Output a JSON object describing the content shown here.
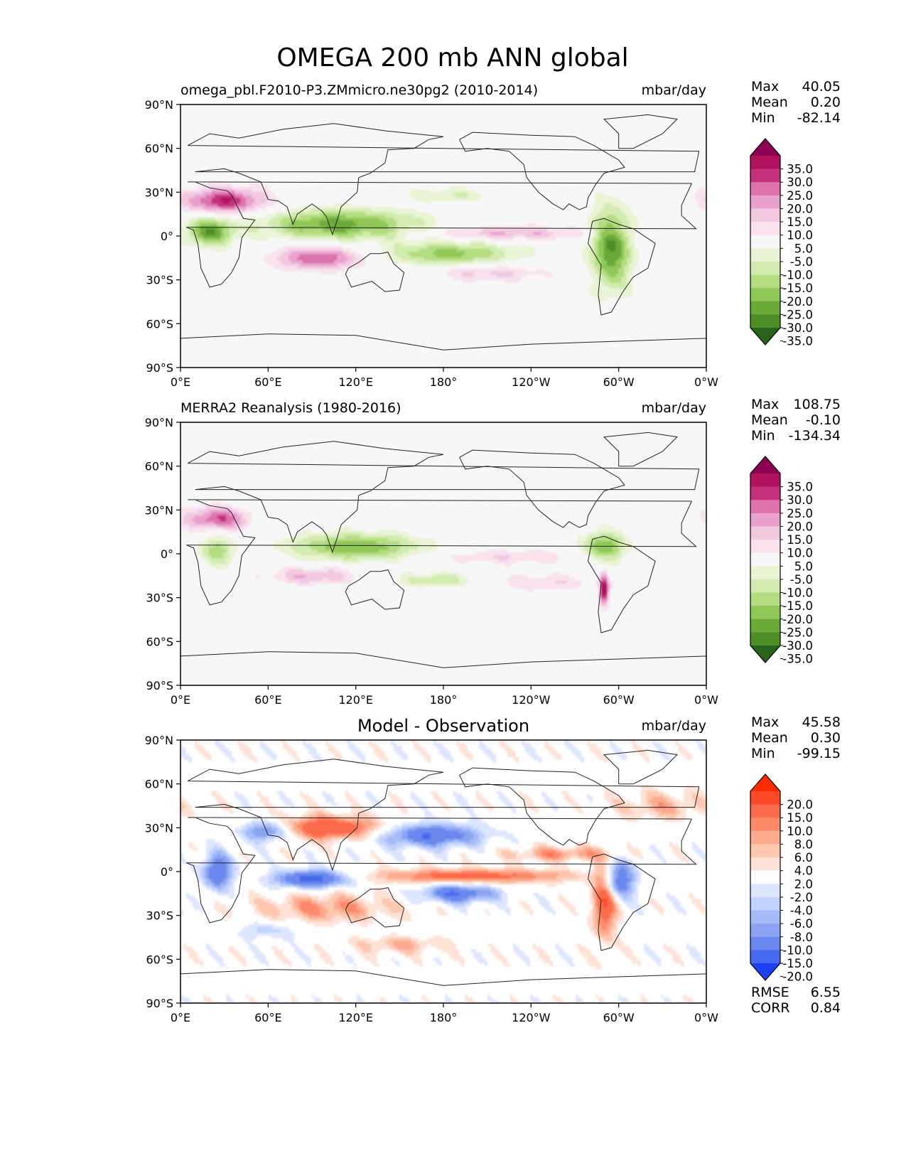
{
  "figure": {
    "title": "OMEGA 200 mb ANN global"
  },
  "chart_data": [
    {
      "type": "heatmap",
      "name": "model",
      "left_title": "omega_pbl.F2010-P3.ZMmicro.ne30pg2 (2010-2014)",
      "center_title": "",
      "units": "mbar/day",
      "stats": [
        {
          "label": "Max",
          "value": "40.05"
        },
        {
          "label": "Mean",
          "value": "0.20"
        },
        {
          "label": "Min",
          "value": "-82.14"
        }
      ],
      "x_ticks": [
        "0°E",
        "60°E",
        "120°E",
        "180°",
        "120°W",
        "60°W",
        "0°W"
      ],
      "y_ticks": [
        "90°N",
        "60°N",
        "30°N",
        "0°",
        "30°S",
        "60°S",
        "90°S"
      ],
      "xlim": [
        0,
        360
      ],
      "ylim": [
        -90,
        90
      ],
      "colorbar": {
        "labels": [
          "35.0",
          "30.0",
          "25.0",
          "20.0",
          "15.0",
          "10.0",
          "5.0",
          "-5.0",
          "-10.0",
          "-15.0",
          "-20.0",
          "-25.0",
          "-30.0",
          "-35.0"
        ],
        "colors": [
          "#8e0152",
          "#b0125e",
          "#c5307c",
          "#dd72ad",
          "#eaa2cc",
          "#f2c8e1",
          "#f9e2ee",
          "#f7f7f7",
          "#e8f4d4",
          "#d2ebae",
          "#b4dd82",
          "#90c858",
          "#6ba938",
          "#4d8f26",
          "#276419"
        ]
      },
      "bands": [
        {
          "sign": 1,
          "lon": 30,
          "lat": 24,
          "rx": 28,
          "ry": 9,
          "mag": 30
        },
        {
          "sign": -1,
          "lon": 110,
          "lat": 8,
          "rx": 55,
          "ry": 10,
          "mag": 28
        },
        {
          "sign": 1,
          "lon": 95,
          "lat": -15,
          "rx": 30,
          "ry": 8,
          "mag": 25
        },
        {
          "sign": -1,
          "lon": 185,
          "lat": -12,
          "rx": 45,
          "ry": 8,
          "mag": 22
        },
        {
          "sign": -1,
          "lon": 20,
          "lat": 3,
          "rx": 16,
          "ry": 10,
          "mag": 28
        },
        {
          "sign": -1,
          "lon": 295,
          "lat": -8,
          "rx": 14,
          "ry": 28,
          "mag": 30
        },
        {
          "sign": 1,
          "lon": 225,
          "lat": 2,
          "rx": 55,
          "ry": 5,
          "mag": 15
        },
        {
          "sign": 1,
          "lon": 210,
          "lat": -25,
          "rx": 40,
          "ry": 6,
          "mag": 12
        },
        {
          "sign": -1,
          "lon": 185,
          "lat": 28,
          "rx": 30,
          "ry": 5,
          "mag": 10
        }
      ]
    },
    {
      "type": "heatmap",
      "name": "obs",
      "left_title": "MERRA2 Reanalysis (1980-2016)",
      "center_title": "",
      "units": "mbar/day",
      "stats": [
        {
          "label": "Max",
          "value": "108.75"
        },
        {
          "label": "Mean",
          "value": "-0.10"
        },
        {
          "label": "Min",
          "value": "-134.34"
        }
      ],
      "x_ticks": [
        "0°E",
        "60°E",
        "120°E",
        "180°",
        "120°W",
        "60°W",
        "0°W"
      ],
      "y_ticks": [
        "90°N",
        "60°N",
        "30°N",
        "0°",
        "30°S",
        "60°S",
        "90°S"
      ],
      "xlim": [
        0,
        360
      ],
      "ylim": [
        -90,
        90
      ],
      "colorbar": {
        "labels": [
          "35.0",
          "30.0",
          "25.0",
          "20.0",
          "15.0",
          "10.0",
          "5.0",
          "-5.0",
          "-10.0",
          "-15.0",
          "-20.0",
          "-25.0",
          "-30.0",
          "-35.0"
        ],
        "colors": [
          "#8e0152",
          "#b0125e",
          "#c5307c",
          "#dd72ad",
          "#eaa2cc",
          "#f2c8e1",
          "#f9e2ee",
          "#f7f7f7",
          "#e8f4d4",
          "#d2ebae",
          "#b4dd82",
          "#90c858",
          "#6ba938",
          "#4d8f26",
          "#276419"
        ]
      },
      "bands": [
        {
          "sign": 1,
          "lon": 25,
          "lat": 24,
          "rx": 22,
          "ry": 8,
          "mag": 25
        },
        {
          "sign": -1,
          "lon": 120,
          "lat": 5,
          "rx": 45,
          "ry": 9,
          "mag": 25
        },
        {
          "sign": 1,
          "lon": 90,
          "lat": -15,
          "rx": 30,
          "ry": 6,
          "mag": 15
        },
        {
          "sign": -1,
          "lon": 175,
          "lat": -18,
          "rx": 25,
          "ry": 5,
          "mag": 15
        },
        {
          "sign": -1,
          "lon": 25,
          "lat": 2,
          "rx": 12,
          "ry": 10,
          "mag": 18
        },
        {
          "sign": -1,
          "lon": 290,
          "lat": 5,
          "rx": 15,
          "ry": 10,
          "mag": 25
        },
        {
          "sign": 1,
          "lon": 290,
          "lat": -25,
          "rx": 3,
          "ry": 10,
          "mag": 35
        },
        {
          "sign": 1,
          "lon": 225,
          "lat": -2,
          "rx": 50,
          "ry": 5,
          "mag": 10
        },
        {
          "sign": 1,
          "lon": 250,
          "lat": -20,
          "rx": 35,
          "ry": 6,
          "mag": 10
        }
      ]
    },
    {
      "type": "heatmap",
      "name": "diff",
      "left_title": "",
      "center_title": "Model - Observation",
      "units": "mbar/day",
      "stats": [
        {
          "label": "Max",
          "value": "45.58"
        },
        {
          "label": "Mean",
          "value": "0.30"
        },
        {
          "label": "Min",
          "value": "-99.15"
        }
      ],
      "x_ticks": [
        "0°E",
        "60°E",
        "120°E",
        "180°",
        "120°W",
        "60°W",
        "0°W"
      ],
      "y_ticks": [
        "90°N",
        "60°N",
        "30°N",
        "0°",
        "30°S",
        "60°S",
        "90°S"
      ],
      "xlim": [
        0,
        360
      ],
      "ylim": [
        -90,
        90
      ],
      "colorbar": {
        "labels": [
          "20.0",
          "15.0",
          "10.0",
          "8.0",
          "6.0",
          "4.0",
          "2.0",
          "-2.0",
          "-4.0",
          "-6.0",
          "-8.0",
          "-10.0",
          "-15.0",
          "-20.0"
        ],
        "colors": [
          "#ff2a00",
          "#ff4a2a",
          "#fb6a4a",
          "#fc8a6a",
          "#fcaa8e",
          "#fdc7b0",
          "#fee2d6",
          "#ffffff",
          "#dde6ff",
          "#c2d2ff",
          "#a5bcf8",
          "#8aa4f2",
          "#6a88ee",
          "#476af0",
          "#1f3ff5"
        ]
      },
      "metrics": [
        {
          "label": "RMSE",
          "value": "6.55"
        },
        {
          "label": "CORR",
          "value": "0.84"
        }
      ],
      "bands": [
        {
          "sign": 1,
          "lon": 100,
          "lat": 30,
          "rx": 40,
          "ry": 8,
          "mag": 15
        },
        {
          "sign": -1,
          "lon": 60,
          "lat": 28,
          "rx": 18,
          "ry": 7,
          "mag": 15
        },
        {
          "sign": -1,
          "lon": 170,
          "lat": 25,
          "rx": 35,
          "ry": 8,
          "mag": 15
        },
        {
          "sign": 1,
          "lon": 200,
          "lat": -3,
          "rx": 70,
          "ry": 5,
          "mag": 12
        },
        {
          "sign": -1,
          "lon": 90,
          "lat": -5,
          "rx": 25,
          "ry": 6,
          "mag": 18
        },
        {
          "sign": -1,
          "lon": 25,
          "lat": 0,
          "rx": 10,
          "ry": 12,
          "mag": 15
        },
        {
          "sign": -1,
          "lon": 190,
          "lat": -15,
          "rx": 25,
          "ry": 6,
          "mag": 15
        },
        {
          "sign": 1,
          "lon": 100,
          "lat": -25,
          "rx": 45,
          "ry": 10,
          "mag": 8
        },
        {
          "sign": 1,
          "lon": 290,
          "lat": -20,
          "rx": 8,
          "ry": 25,
          "mag": 15
        },
        {
          "sign": -1,
          "lon": 300,
          "lat": -5,
          "rx": 12,
          "ry": 12,
          "mag": 15
        },
        {
          "sign": 1,
          "lon": 260,
          "lat": 12,
          "rx": 35,
          "ry": 5,
          "mag": 8
        },
        {
          "sign": -1,
          "lon": 60,
          "lat": -40,
          "rx": 20,
          "ry": 6,
          "mag": 5
        },
        {
          "sign": 1,
          "lon": 150,
          "lat": -50,
          "rx": 30,
          "ry": 6,
          "mag": 6
        },
        {
          "sign": 1,
          "lon": 330,
          "lat": 45,
          "rx": 30,
          "ry": 10,
          "mag": 6
        }
      ]
    }
  ]
}
